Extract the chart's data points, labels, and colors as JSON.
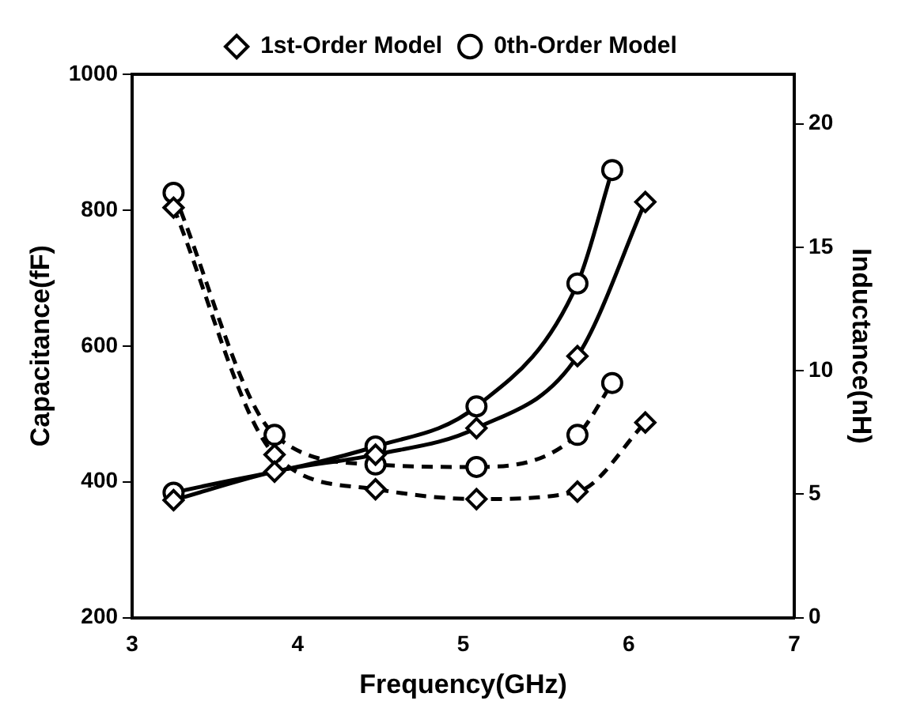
{
  "chart_data": {
    "type": "line",
    "xlabel": "Frequency(GHz)",
    "ylabel": "Capacitance(fF)",
    "y2label": "Inductance(nH)",
    "xlim": [
      3,
      7
    ],
    "xticks": [
      3,
      4,
      5,
      6,
      7
    ],
    "ylim": [
      200,
      1000
    ],
    "yticks": [
      200,
      400,
      600,
      800,
      1000
    ],
    "y2lim": [
      0,
      22
    ],
    "y2ticks": [
      0,
      5,
      10,
      15,
      20
    ],
    "grid": false,
    "legend": "top",
    "series": [
      {
        "name": "1st-Order Model",
        "color": "#000000",
        "marker": "diamond",
        "line_style": "solid",
        "x": [
          3.25,
          3.86,
          4.47,
          5.08,
          5.69,
          6.1
        ],
        "values": [
          373,
          415,
          440,
          479,
          585,
          812
        ]
      },
      {
        "name": "0th-Order Model",
        "color": "#000000",
        "marker": "circle",
        "line_style": "solid",
        "x": [
          3.25,
          4.47,
          5.08,
          5.69,
          5.9
        ],
        "values": [
          384,
          452,
          511,
          692,
          859
        ]
      },
      {
        "color": "#000000",
        "marker": "diamond",
        "line_style": "dashed",
        "axis": "y2",
        "x": [
          3.25,
          3.86,
          4.47,
          5.08,
          5.69,
          6.1
        ],
        "values": [
          16.6,
          6.6,
          5.2,
          4.8,
          5.1,
          7.9
        ]
      },
      {
        "color": "#000000",
        "marker": "circle",
        "line_style": "dashed",
        "axis": "y2",
        "x": [
          3.25,
          3.86,
          4.47,
          5.08,
          5.69,
          5.9
        ],
        "values": [
          17.2,
          7.4,
          6.2,
          6.1,
          7.4,
          9.5
        ]
      }
    ]
  }
}
